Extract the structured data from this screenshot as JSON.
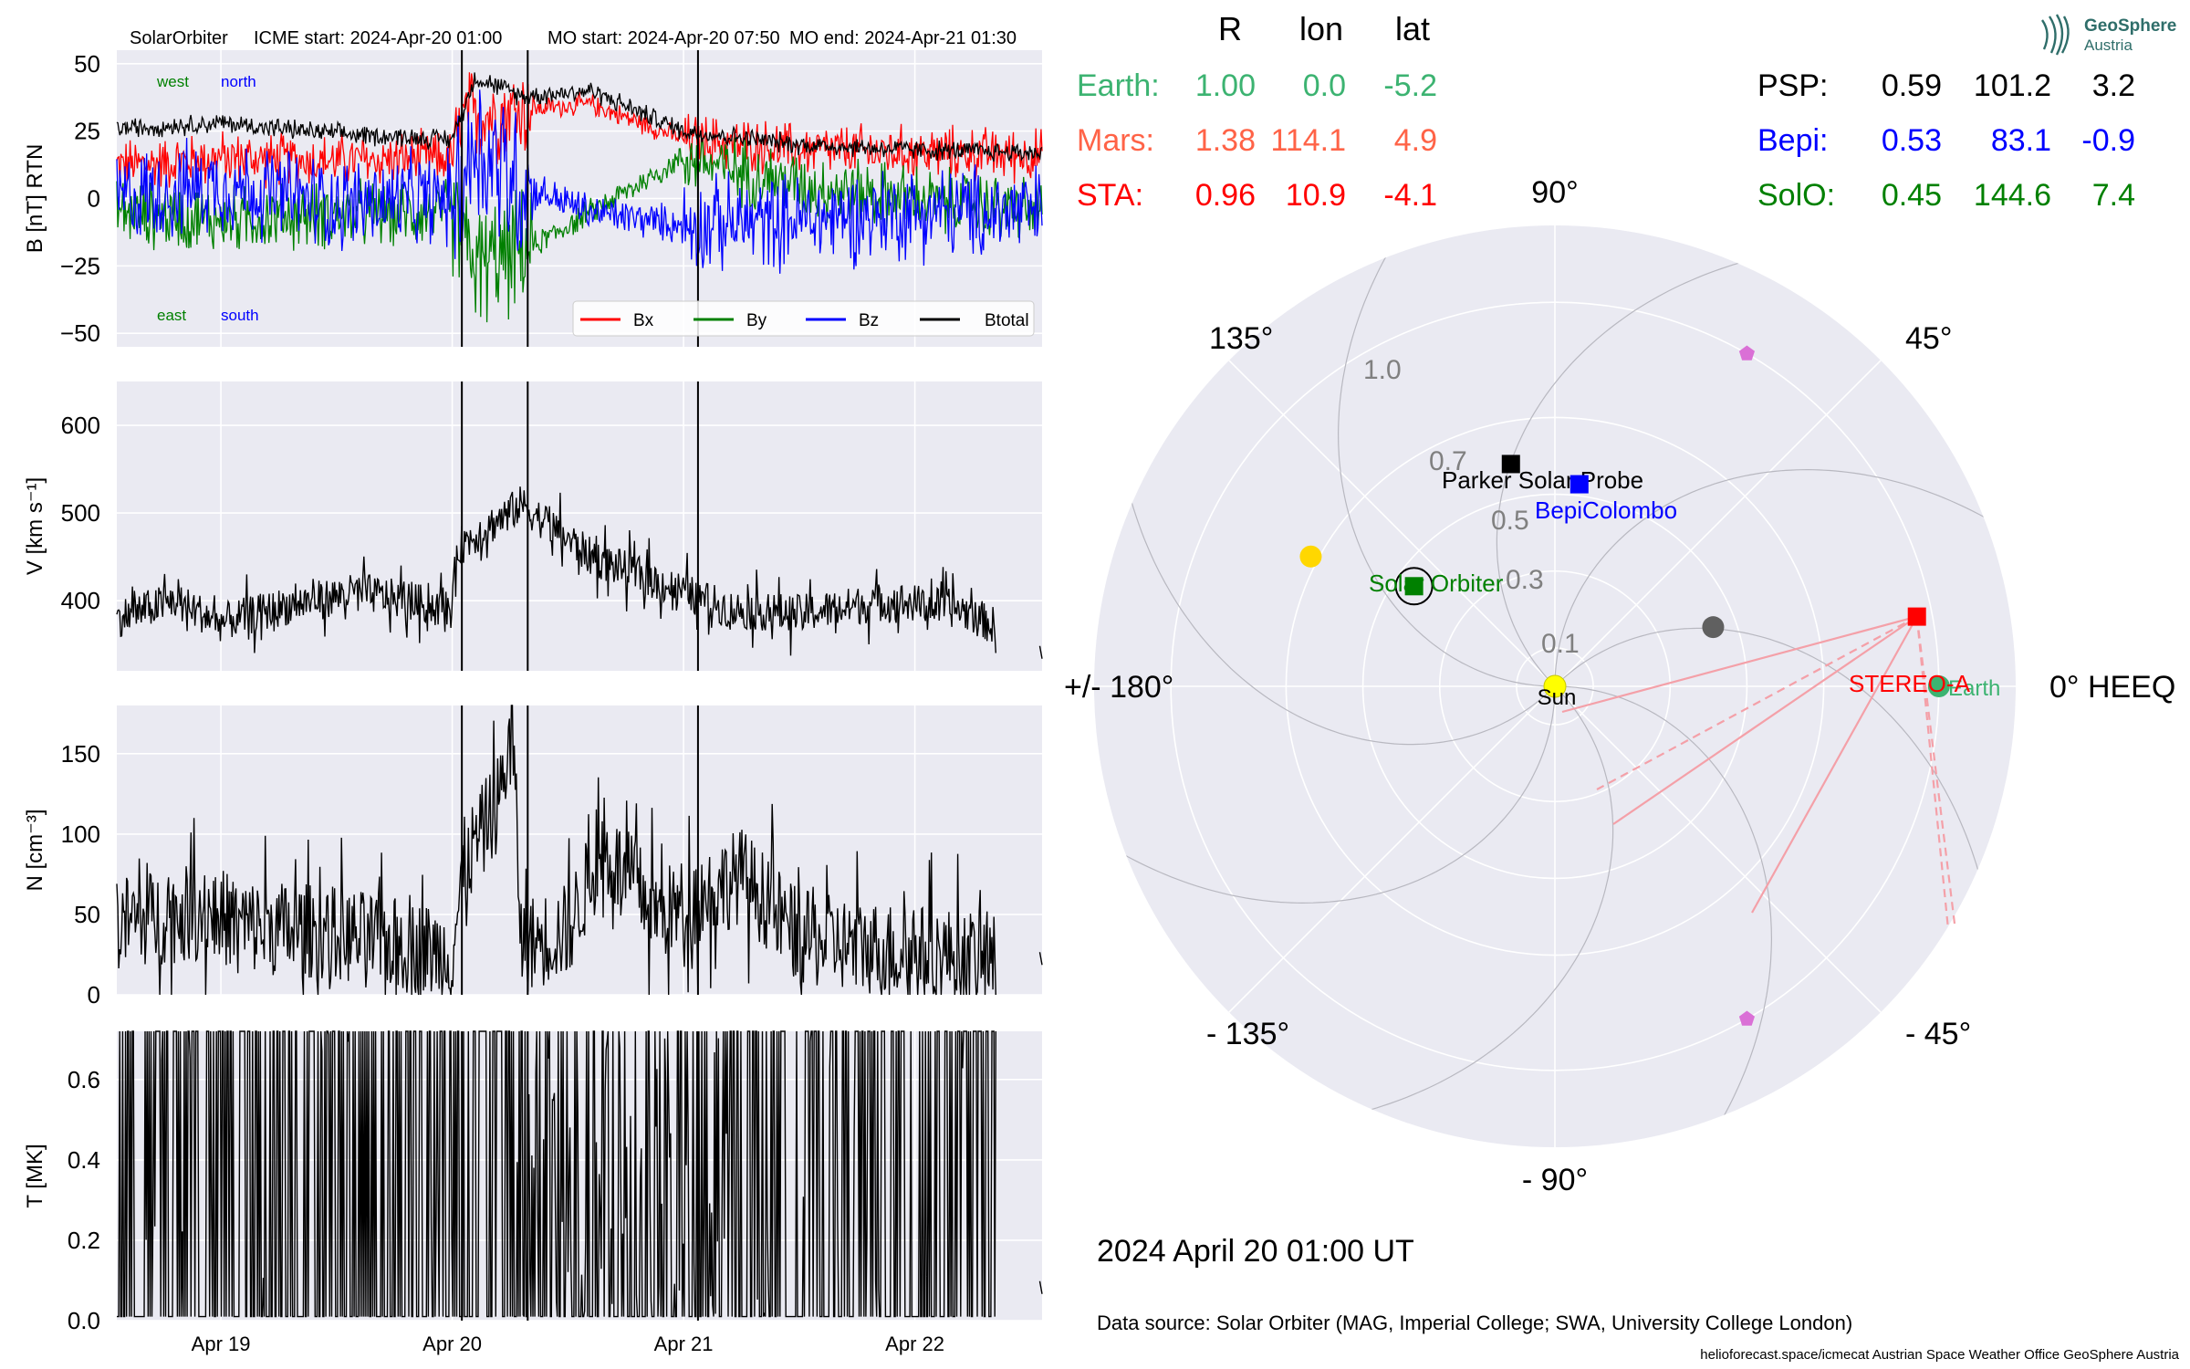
{
  "header": {
    "spacecraft": "SolarOrbiter",
    "icme_start": "ICME start: 2024-Apr-20 01:00",
    "mo_start": "MO start: 2024-Apr-20 07:50",
    "mo_end": "MO end: 2024-Apr-21 01:30"
  },
  "colors": {
    "panel_bg": "#eaeaf2",
    "bx": "#ff0000",
    "by": "#008000",
    "bz": "#0000ff",
    "btotal": "#000000",
    "earth": "#3cb371",
    "mars": "#ff6347",
    "sta": "#ff0000",
    "psp": "#000000",
    "bepi": "#0000ff",
    "solo": "#008000",
    "sun": "#ffff00",
    "venus": "#ffd700",
    "mercury": "#606060",
    "l_points": "#da70d6"
  },
  "chart_data": [
    {
      "type": "line",
      "ylabel": "B [nT] RTN",
      "ylim": [
        -55,
        55
      ],
      "yticks": [
        50,
        25,
        0,
        -25,
        -50
      ],
      "ytick_labels": [
        "50",
        "25",
        "0",
        "−25",
        "−50"
      ],
      "grid": true,
      "legend_position": "lower-right",
      "annotations": {
        "west": "west",
        "north": "north",
        "east": "east",
        "south": "south"
      },
      "series": [
        {
          "name": "Bx",
          "color": "#ff0000",
          "x": [
            "Apr 18.55",
            "Apr 19.00",
            "Apr 19.50",
            "Apr 20.00",
            "Apr 20.05",
            "Apr 20.30",
            "Apr 20.60",
            "Apr 21.00",
            "Apr 21.50",
            "Apr 22.00",
            "Apr 22.55"
          ],
          "y": [
            12,
            15,
            14,
            15,
            30,
            33,
            35,
            22,
            18,
            17,
            16
          ]
        },
        {
          "name": "By",
          "color": "#008000",
          "x": [
            "Apr 18.55",
            "Apr 19.00",
            "Apr 19.50",
            "Apr 20.00",
            "Apr 20.10",
            "Apr 20.30",
            "Apr 20.60",
            "Apr 21.00",
            "Apr 21.50",
            "Apr 22.00",
            "Apr 22.55"
          ],
          "y": [
            -5,
            -8,
            -6,
            -5,
            -25,
            -20,
            -5,
            15,
            5,
            0,
            -5
          ]
        },
        {
          "name": "Bz",
          "color": "#0000ff",
          "x": [
            "Apr 18.55",
            "Apr 19.00",
            "Apr 19.50",
            "Apr 20.00",
            "Apr 20.10",
            "Apr 20.30",
            "Apr 20.60",
            "Apr 21.00",
            "Apr 21.50",
            "Apr 22.00",
            "Apr 22.55"
          ],
          "y": [
            0,
            5,
            -2,
            0,
            20,
            5,
            -5,
            -10,
            -8,
            -5,
            -5
          ]
        },
        {
          "name": "Btotal",
          "color": "#000000",
          "x": [
            "Apr 18.55",
            "Apr 19.00",
            "Apr 19.50",
            "Apr 20.00",
            "Apr 20.10",
            "Apr 20.30",
            "Apr 20.60",
            "Apr 21.00",
            "Apr 21.50",
            "Apr 22.00",
            "Apr 22.55"
          ],
          "y": [
            26,
            28,
            24,
            22,
            45,
            38,
            40,
            25,
            20,
            18,
            17
          ]
        }
      ]
    },
    {
      "type": "line",
      "ylabel": "V [km s⁻¹]",
      "ylim": [
        320,
        650
      ],
      "yticks": [
        600,
        500,
        400
      ],
      "ytick_labels": [
        "600",
        "500",
        "400"
      ],
      "grid": true,
      "series": [
        {
          "name": "",
          "color": "#000000",
          "x": [
            "Apr 18.55",
            "Apr 18.80",
            "Apr 19.00",
            "Apr 19.30",
            "Apr 19.60",
            "Apr 19.80",
            "Apr 20.00",
            "Apr 20.02",
            "Apr 20.30",
            "Apr 20.60",
            "Apr 21.00",
            "Apr 21.20",
            "Apr 21.50",
            "Apr 21.90",
            "Apr 22.20",
            "Apr 22.35"
          ],
          "y": [
            380,
            400,
            375,
            395,
            410,
            400,
            390,
            460,
            510,
            450,
            410,
            390,
            385,
            400,
            390,
            370
          ]
        },
        {
          "name": "",
          "color": "#000000",
          "x": [
            "Apr 22.55"
          ],
          "y": [
            340
          ]
        }
      ]
    },
    {
      "type": "line",
      "ylabel": "N [cm⁻³]",
      "ylim": [
        0,
        180
      ],
      "yticks": [
        150,
        100,
        50,
        0
      ],
      "ytick_labels": [
        "150",
        "100",
        "50",
        "0"
      ],
      "grid": true,
      "series": [
        {
          "name": "",
          "color": "#000000",
          "x": [
            "Apr 18.55",
            "Apr 18.95",
            "Apr 19.10",
            "Apr 19.50",
            "Apr 19.80",
            "Apr 20.00",
            "Apr 20.05",
            "Apr 20.20",
            "Apr 20.26",
            "Apr 20.30",
            "Apr 20.50",
            "Apr 20.65",
            "Apr 20.90",
            "Apr 21.00",
            "Apr 21.25",
            "Apr 21.50",
            "Apr 21.90",
            "Apr 22.20",
            "Apr 22.35"
          ],
          "y": [
            45,
            52,
            43,
            38,
            30,
            25,
            80,
            120,
            165,
            30,
            40,
            90,
            50,
            55,
            75,
            35,
            28,
            24,
            20
          ]
        },
        {
          "name": "",
          "color": "#000000",
          "x": [
            "Apr 22.55"
          ],
          "y": [
            22
          ]
        }
      ]
    },
    {
      "type": "line",
      "ylabel": "T [MK]",
      "xlabel": "",
      "ylim": [
        0,
        0.72
      ],
      "yticks": [
        0.6,
        0.4,
        0.2,
        0.0
      ],
      "ytick_labels": [
        "0.6",
        "0.4",
        "0.2",
        "0.0"
      ],
      "xticks": [
        "Apr 19",
        "Apr 20",
        "Apr 21",
        "Apr 22"
      ],
      "grid": true,
      "series": [
        {
          "name": "",
          "color": "#000000",
          "x": [
            "Apr 18.55",
            "Apr 18.80",
            "Apr 19.10",
            "Apr 19.40",
            "Apr 19.70",
            "Apr 19.95",
            "Apr 20.02",
            "Apr 20.15",
            "Apr 20.30",
            "Apr 20.50",
            "Apr 21.00",
            "Apr 21.30",
            "Apr 21.70",
            "Apr 22.00",
            "Apr 22.20",
            "Apr 22.35"
          ],
          "y": [
            0.18,
            0.25,
            0.42,
            0.3,
            0.2,
            0.1,
            0.42,
            0.3,
            0.06,
            0.04,
            0.04,
            0.08,
            0.13,
            0.17,
            0.18,
            0.1
          ]
        },
        {
          "name": "",
          "color": "#000000",
          "x": [
            "Apr 22.55"
          ],
          "y": [
            0.08
          ]
        }
      ]
    },
    {
      "type": "scatter",
      "projection": "polar",
      "title": "",
      "radial_ticks": [
        "0.1",
        "0.3",
        "0.5",
        "0.7",
        "1.0"
      ],
      "angle_labels": [
        "0° HEEQ",
        "45°",
        "90°",
        "135°",
        "+/- 180°",
        "- 135°",
        "- 90°",
        "- 45°"
      ],
      "bodies": [
        {
          "name": "Sun",
          "r": 0.0,
          "lon": 0.0,
          "marker": "circle",
          "color": "#ffff00"
        },
        {
          "name": "Earth",
          "r": 1.0,
          "lon": 0.0,
          "marker": "circle",
          "color": "#3cb371"
        },
        {
          "name": "STEREO-A",
          "r": 0.96,
          "lon": 10.9,
          "marker": "square",
          "color": "#ff0000"
        },
        {
          "name": "Parker Solar Probe",
          "r": 0.59,
          "lon": 101.2,
          "marker": "square",
          "color": "#000000"
        },
        {
          "name": "BepiColombo",
          "r": 0.53,
          "lon": 83.1,
          "marker": "square",
          "color": "#0000ff"
        },
        {
          "name": "Solar Orbiter",
          "r": 0.45,
          "lon": 144.6,
          "marker": "square",
          "color": "#008000"
        },
        {
          "name": "",
          "r": 0.72,
          "lon": 152.0,
          "marker": "circle",
          "color": "#ffd700"
        },
        {
          "name": "",
          "r": 0.44,
          "lon": 20.5,
          "marker": "circle",
          "color": "#606060"
        },
        {
          "name": "",
          "r": 1.0,
          "lon": 60.0,
          "marker": "pentagon",
          "color": "#da70d6"
        },
        {
          "name": "",
          "r": 1.0,
          "lon": -60.0,
          "marker": "pentagon",
          "color": "#da70d6"
        }
      ]
    }
  ],
  "positions_table": {
    "headers": [
      "R",
      "lon",
      "lat"
    ],
    "rows_left": [
      {
        "name": "Earth:",
        "r": "1.00",
        "lon": "0.0",
        "lat": "-5.2",
        "color": "#3cb371"
      },
      {
        "name": "Mars:",
        "r": "1.38",
        "lon": "114.1",
        "lat": "4.9",
        "color": "#ff6347"
      },
      {
        "name": "STA:",
        "r": "0.96",
        "lon": "10.9",
        "lat": "-4.1",
        "color": "#ff0000"
      }
    ],
    "rows_right": [
      {
        "name": "PSP:",
        "r": "0.59",
        "lon": "101.2",
        "lat": "3.2",
        "color": "#000000"
      },
      {
        "name": "Bepi:",
        "r": "0.53",
        "lon": "83.1",
        "lat": "-0.9",
        "color": "#0000ff"
      },
      {
        "name": "SolO:",
        "r": "0.45",
        "lon": "144.6",
        "lat": "7.4",
        "color": "#008000"
      }
    ]
  },
  "footer": {
    "datetime": "2024 April 20  01:00 UT",
    "data_source": "Data source: Solar Orbiter (MAG, Imperial College; SWA, University College London)",
    "credits": "helioforecast.space/icmecat   Austrian Space Weather Office   GeoSphere Austria",
    "logo_line1": "GeoSphere",
    "logo_line2": "Austria"
  }
}
